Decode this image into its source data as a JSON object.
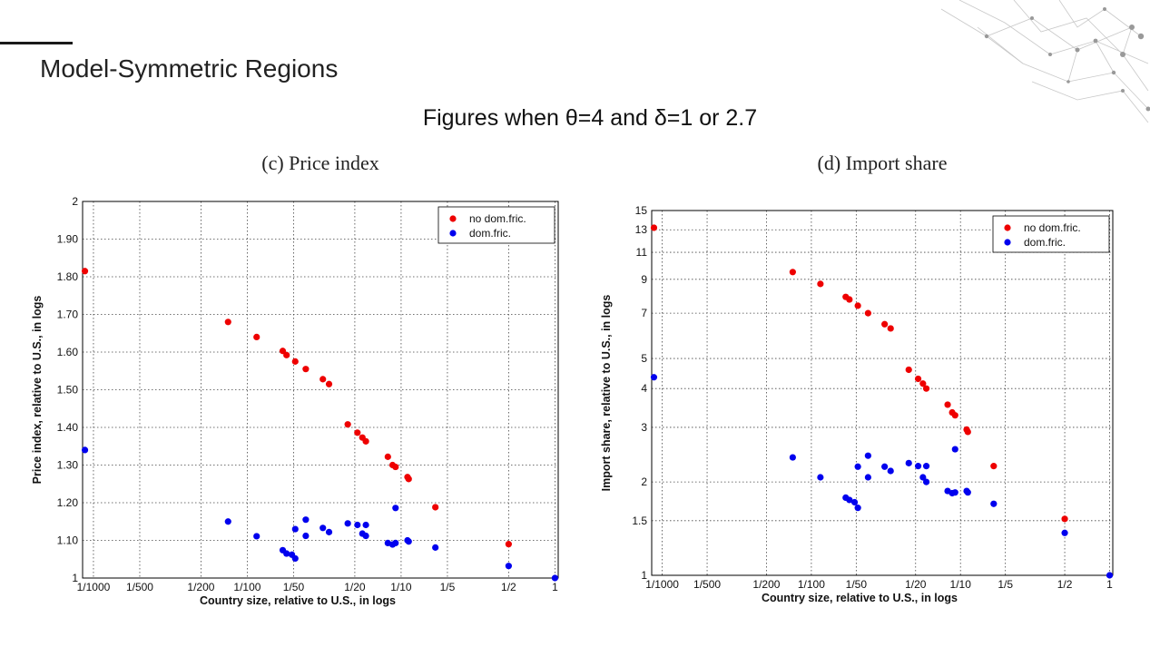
{
  "slide": {
    "title": "Model-Symmetric Regions",
    "subtitle": "Figures when θ=4 and  δ=1 or 2.7"
  },
  "colors": {
    "no_dom_fric": "#ee0000",
    "dom_fric": "#0000ee"
  },
  "chart_data": [
    {
      "type": "scatter",
      "title": "(c) Price index",
      "xlabel": "Country size, relative to U.S., in logs",
      "ylabel": "Price index, relative to U.S., in logs",
      "x_scale": "log",
      "xlim": [
        0.00085,
        1.05
      ],
      "ylim": [
        1,
        2
      ],
      "x_ticks": [
        0.001,
        0.002,
        0.005,
        0.01,
        0.02,
        0.05,
        0.1,
        0.2,
        0.5,
        1
      ],
      "x_tick_labels": [
        "1/1000",
        "1/500",
        "1/200",
        "1/100",
        "1/50",
        "1/20",
        "1/10",
        "1/5",
        "1/2",
        "1"
      ],
      "y_ticks": [
        1,
        1.1,
        1.2,
        1.3,
        1.4,
        1.5,
        1.6,
        1.7,
        1.8,
        1.9,
        2
      ],
      "y_tick_labels": [
        "1",
        "1.10",
        "1.20",
        "1.30",
        "1.40",
        "1.50",
        "1.60",
        "1.70",
        "1.80",
        "1.90",
        "2"
      ],
      "grid": true,
      "legend_position": "top-right",
      "series": [
        {
          "name": "no dom.fric.",
          "points": [
            [
              0.00088,
              1.815
            ],
            [
              0.0075,
              1.68
            ],
            [
              0.0115,
              1.64
            ],
            [
              0.017,
              1.603
            ],
            [
              0.018,
              1.592
            ],
            [
              0.0205,
              1.575
            ],
            [
              0.024,
              1.555
            ],
            [
              0.031,
              1.528
            ],
            [
              0.034,
              1.515
            ],
            [
              0.045,
              1.408
            ],
            [
              0.052,
              1.386
            ],
            [
              0.056,
              1.373
            ],
            [
              0.059,
              1.363
            ],
            [
              0.082,
              1.322
            ],
            [
              0.088,
              1.3
            ],
            [
              0.092,
              1.295
            ],
            [
              0.11,
              1.268
            ],
            [
              0.112,
              1.263
            ],
            [
              0.167,
              1.188
            ],
            [
              0.5,
              1.09
            ]
          ]
        },
        {
          "name": "dom.fric.",
          "points": [
            [
              0.00088,
              1.34
            ],
            [
              0.0075,
              1.15
            ],
            [
              0.0115,
              1.111
            ],
            [
              0.017,
              1.074
            ],
            [
              0.018,
              1.065
            ],
            [
              0.0195,
              1.062
            ],
            [
              0.0205,
              1.052
            ],
            [
              0.0205,
              1.13
            ],
            [
              0.024,
              1.155
            ],
            [
              0.024,
              1.112
            ],
            [
              0.031,
              1.133
            ],
            [
              0.034,
              1.122
            ],
            [
              0.045,
              1.145
            ],
            [
              0.052,
              1.141
            ],
            [
              0.056,
              1.118
            ],
            [
              0.059,
              1.112
            ],
            [
              0.059,
              1.141
            ],
            [
              0.082,
              1.093
            ],
            [
              0.088,
              1.089
            ],
            [
              0.092,
              1.093
            ],
            [
              0.092,
              1.186
            ],
            [
              0.11,
              1.1
            ],
            [
              0.112,
              1.097
            ],
            [
              0.167,
              1.081
            ],
            [
              0.5,
              1.032
            ],
            [
              1,
              1
            ]
          ]
        }
      ]
    },
    {
      "type": "scatter",
      "title": "(d) Import share",
      "xlabel": "Country size, relative to U.S., in logs",
      "ylabel": "Import share, relative to U.S., in logs",
      "x_scale": "log",
      "y_scale": "log",
      "xlim": [
        0.00085,
        1.05
      ],
      "ylim": [
        1,
        15
      ],
      "x_ticks": [
        0.001,
        0.002,
        0.005,
        0.01,
        0.02,
        0.05,
        0.1,
        0.2,
        0.5,
        1
      ],
      "x_tick_labels": [
        "1/1000",
        "1/500",
        "1/200",
        "1/100",
        "1/50",
        "1/20",
        "1/10",
        "1/5",
        "1/2",
        "1"
      ],
      "y_ticks": [
        1,
        1.5,
        2,
        3,
        4,
        5,
        7,
        9,
        11,
        13,
        15
      ],
      "y_tick_labels": [
        "1",
        "1.5",
        "2",
        "3",
        "4",
        "5",
        "7",
        "9",
        "11",
        "13",
        "15"
      ],
      "grid": true,
      "legend_position": "top-right",
      "series": [
        {
          "name": "no dom.fric.",
          "points": [
            [
              0.00088,
              13.2
            ],
            [
              0.0075,
              9.5
            ],
            [
              0.0115,
              8.7
            ],
            [
              0.017,
              7.9
            ],
            [
              0.018,
              7.75
            ],
            [
              0.0205,
              7.4
            ],
            [
              0.024,
              7.0
            ],
            [
              0.031,
              6.45
            ],
            [
              0.034,
              6.25
            ],
            [
              0.045,
              4.6
            ],
            [
              0.052,
              4.3
            ],
            [
              0.056,
              4.15
            ],
            [
              0.059,
              4.0
            ],
            [
              0.082,
              3.55
            ],
            [
              0.088,
              3.35
            ],
            [
              0.092,
              3.28
            ],
            [
              0.11,
              2.95
            ],
            [
              0.112,
              2.9
            ],
            [
              0.167,
              2.25
            ],
            [
              0.5,
              1.52
            ]
          ]
        },
        {
          "name": "dom.fric.",
          "points": [
            [
              0.00088,
              4.35
            ],
            [
              0.0075,
              2.4
            ],
            [
              0.0115,
              2.07
            ],
            [
              0.017,
              1.78
            ],
            [
              0.018,
              1.75
            ],
            [
              0.0195,
              1.72
            ],
            [
              0.0205,
              1.65
            ],
            [
              0.0205,
              2.24
            ],
            [
              0.024,
              2.43
            ],
            [
              0.024,
              2.07
            ],
            [
              0.031,
              2.24
            ],
            [
              0.034,
              2.17
            ],
            [
              0.045,
              2.3
            ],
            [
              0.052,
              2.25
            ],
            [
              0.056,
              2.07
            ],
            [
              0.059,
              2.25
            ],
            [
              0.059,
              2.0
            ],
            [
              0.082,
              1.87
            ],
            [
              0.088,
              1.84
            ],
            [
              0.092,
              1.85
            ],
            [
              0.092,
              2.55
            ],
            [
              0.11,
              1.87
            ],
            [
              0.112,
              1.85
            ],
            [
              0.167,
              1.7
            ],
            [
              0.5,
              1.37
            ],
            [
              1,
              1
            ]
          ]
        }
      ]
    }
  ]
}
